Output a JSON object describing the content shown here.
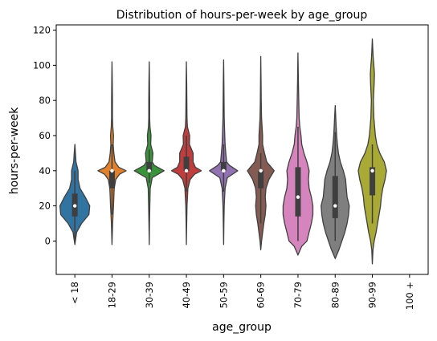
{
  "chart_data": {
    "type": "violin",
    "title": "Distribution of hours-per-week by age_group",
    "xlabel": "age_group",
    "ylabel": "hours-per-week",
    "ylim": [
      -19,
      123
    ],
    "yticks": [
      0,
      20,
      40,
      60,
      80,
      100,
      120
    ],
    "grid": false,
    "legend": "none",
    "categories": [
      "< 18",
      "18-29",
      "30-39",
      "40-49",
      "50-59",
      "60-69",
      "70-79",
      "80-89",
      "90-99",
      "100 +"
    ],
    "colors": [
      "#3274a1",
      "#e1812c",
      "#3a923a",
      "#c03d3e",
      "#9372b2",
      "#845b53",
      "#d684bd",
      "#7f7f7f",
      "#a9aa35",
      "#2ba9b8"
    ],
    "violins": [
      {
        "category": "< 18",
        "min": -2,
        "max": 55,
        "q1": 14,
        "median": 20,
        "q3": 27,
        "whisker_low": 0,
        "whisker_high": 40,
        "profile": [
          [
            -2,
            0
          ],
          [
            5,
            0.12
          ],
          [
            10,
            0.45
          ],
          [
            15,
            0.95
          ],
          [
            20,
            1.0
          ],
          [
            25,
            0.7
          ],
          [
            30,
            0.35
          ],
          [
            35,
            0.22
          ],
          [
            40,
            0.22
          ],
          [
            45,
            0.08
          ],
          [
            50,
            0.04
          ],
          [
            55,
            0
          ]
        ]
      },
      {
        "category": "18-29",
        "min": -2,
        "max": 102,
        "q1": 30,
        "median": 40,
        "q3": 40,
        "whisker_low": 15,
        "whisker_high": 55,
        "profile": [
          [
            -2,
            0
          ],
          [
            10,
            0.04
          ],
          [
            20,
            0.1
          ],
          [
            25,
            0.12
          ],
          [
            30,
            0.15
          ],
          [
            35,
            0.25
          ],
          [
            38,
            0.5
          ],
          [
            40,
            0.95
          ],
          [
            42,
            0.45
          ],
          [
            45,
            0.2
          ],
          [
            50,
            0.12
          ],
          [
            55,
            0.08
          ],
          [
            60,
            0.1
          ],
          [
            65,
            0.05
          ],
          [
            70,
            0.03
          ],
          [
            80,
            0.03
          ],
          [
            90,
            0.02
          ],
          [
            102,
            0
          ]
        ]
      },
      {
        "category": "30-39",
        "min": -2,
        "max": 102,
        "q1": 40,
        "median": 40,
        "q3": 45,
        "whisker_low": 33,
        "whisker_high": 52,
        "profile": [
          [
            -2,
            0
          ],
          [
            10,
            0.02
          ],
          [
            20,
            0.04
          ],
          [
            30,
            0.07
          ],
          [
            36,
            0.2
          ],
          [
            40,
            1.0
          ],
          [
            43,
            0.35
          ],
          [
            45,
            0.2
          ],
          [
            50,
            0.25
          ],
          [
            55,
            0.1
          ],
          [
            60,
            0.12
          ],
          [
            65,
            0.05
          ],
          [
            70,
            0.03
          ],
          [
            80,
            0.03
          ],
          [
            90,
            0.02
          ],
          [
            102,
            0
          ]
        ]
      },
      {
        "category": "40-49",
        "min": -2,
        "max": 102,
        "q1": 40,
        "median": 40,
        "q3": 48,
        "whisker_low": 28,
        "whisker_high": 60,
        "profile": [
          [
            -2,
            0
          ],
          [
            10,
            0.02
          ],
          [
            20,
            0.04
          ],
          [
            30,
            0.1
          ],
          [
            35,
            0.25
          ],
          [
            38,
            0.55
          ],
          [
            40,
            1.0
          ],
          [
            42,
            0.6
          ],
          [
            45,
            0.45
          ],
          [
            50,
            0.45
          ],
          [
            55,
            0.2
          ],
          [
            60,
            0.22
          ],
          [
            65,
            0.07
          ],
          [
            70,
            0.04
          ],
          [
            80,
            0.03
          ],
          [
            90,
            0.02
          ],
          [
            102,
            0
          ]
        ]
      },
      {
        "category": "50-59",
        "min": -2,
        "max": 103,
        "q1": 40,
        "median": 40,
        "q3": 45,
        "whisker_low": 28,
        "whisker_high": 55,
        "profile": [
          [
            -2,
            0
          ],
          [
            10,
            0.02
          ],
          [
            20,
            0.04
          ],
          [
            30,
            0.1
          ],
          [
            36,
            0.25
          ],
          [
            40,
            0.95
          ],
          [
            43,
            0.4
          ],
          [
            45,
            0.2
          ],
          [
            50,
            0.15
          ],
          [
            55,
            0.1
          ],
          [
            60,
            0.08
          ],
          [
            70,
            0.04
          ],
          [
            80,
            0.03
          ],
          [
            90,
            0.02
          ],
          [
            103,
            0
          ]
        ]
      },
      {
        "category": "60-69",
        "min": -5,
        "max": 105,
        "q1": 30,
        "median": 40,
        "q3": 40,
        "whisker_low": 10,
        "whisker_high": 50,
        "profile": [
          [
            -5,
            0
          ],
          [
            0,
            0.05
          ],
          [
            10,
            0.2
          ],
          [
            15,
            0.3
          ],
          [
            20,
            0.35
          ],
          [
            25,
            0.3
          ],
          [
            30,
            0.35
          ],
          [
            35,
            0.55
          ],
          [
            40,
            0.9
          ],
          [
            45,
            0.4
          ],
          [
            50,
            0.25
          ],
          [
            55,
            0.12
          ],
          [
            60,
            0.12
          ],
          [
            70,
            0.05
          ],
          [
            80,
            0.03
          ],
          [
            90,
            0.02
          ],
          [
            105,
            0
          ]
        ]
      },
      {
        "category": "70-79",
        "min": -8,
        "max": 107,
        "q1": 14,
        "median": 25,
        "q3": 42,
        "whisker_low": 0,
        "whisker_high": 65,
        "profile": [
          [
            -8,
            0
          ],
          [
            -3,
            0.25
          ],
          [
            0,
            0.6
          ],
          [
            5,
            0.75
          ],
          [
            10,
            0.9
          ],
          [
            15,
            1.0
          ],
          [
            20,
            1.0
          ],
          [
            25,
            0.9
          ],
          [
            30,
            0.75
          ],
          [
            35,
            0.7
          ],
          [
            40,
            0.75
          ],
          [
            45,
            0.6
          ],
          [
            50,
            0.4
          ],
          [
            55,
            0.25
          ],
          [
            60,
            0.2
          ],
          [
            65,
            0.12
          ],
          [
            70,
            0.08
          ],
          [
            80,
            0.05
          ],
          [
            90,
            0.03
          ],
          [
            107,
            0
          ]
        ]
      },
      {
        "category": "80-89",
        "min": -10,
        "max": 77,
        "q1": 13,
        "median": 20,
        "q3": 37,
        "whisker_low": 0,
        "whisker_high": 62,
        "profile": [
          [
            -10,
            0
          ],
          [
            -5,
            0.25
          ],
          [
            0,
            0.45
          ],
          [
            5,
            0.65
          ],
          [
            10,
            0.8
          ],
          [
            15,
            0.9
          ],
          [
            20,
            0.95
          ],
          [
            25,
            0.8
          ],
          [
            30,
            0.75
          ],
          [
            35,
            0.7
          ],
          [
            40,
            0.55
          ],
          [
            45,
            0.35
          ],
          [
            50,
            0.22
          ],
          [
            55,
            0.15
          ],
          [
            60,
            0.1
          ],
          [
            65,
            0.07
          ],
          [
            70,
            0.04
          ],
          [
            77,
            0
          ]
        ]
      },
      {
        "category": "90-99",
        "min": -13,
        "max": 115,
        "q1": 26,
        "median": 40,
        "q3": 42,
        "whisker_low": 10,
        "whisker_high": 55,
        "profile": [
          [
            -13,
            0
          ],
          [
            -5,
            0.04
          ],
          [
            0,
            0.12
          ],
          [
            5,
            0.25
          ],
          [
            10,
            0.35
          ],
          [
            15,
            0.45
          ],
          [
            20,
            0.55
          ],
          [
            25,
            0.6
          ],
          [
            30,
            0.7
          ],
          [
            35,
            0.85
          ],
          [
            40,
            0.95
          ],
          [
            45,
            0.8
          ],
          [
            50,
            0.5
          ],
          [
            55,
            0.3
          ],
          [
            60,
            0.2
          ],
          [
            70,
            0.1
          ],
          [
            80,
            0.07
          ],
          [
            90,
            0.12
          ],
          [
            95,
            0.14
          ],
          [
            100,
            0.1
          ],
          [
            105,
            0.05
          ],
          [
            115,
            0
          ]
        ]
      }
    ]
  }
}
